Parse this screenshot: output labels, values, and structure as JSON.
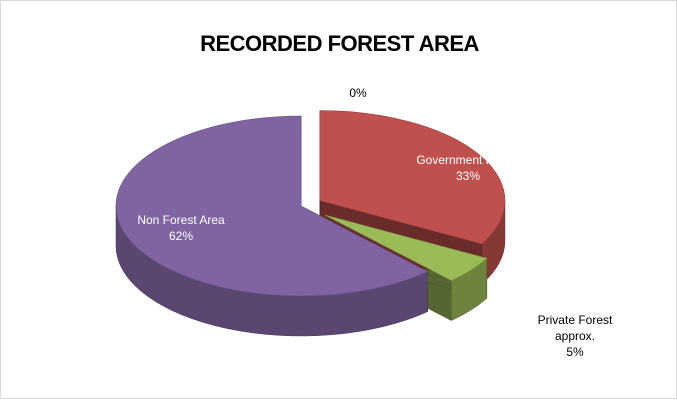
{
  "chart_data": {
    "type": "pie",
    "title": "RECORDED FOREST AREA",
    "categories": [
      "Government Forest",
      "Private Forest approx.",
      "Non Forest Area",
      ""
    ],
    "values": [
      33,
      5,
      62,
      0
    ],
    "labels": [
      {
        "name": "Government Forest",
        "value": "33%"
      },
      {
        "name_lines": [
          "Private Forest",
          "approx."
        ],
        "value": "5%"
      },
      {
        "name": "Non Forest Area",
        "value": "62%"
      },
      {
        "value": "0%"
      }
    ],
    "colors": [
      "#c0504d",
      "#9bbb59",
      "#8064a2",
      "#ffffff"
    ],
    "style": "3d-exploded"
  }
}
